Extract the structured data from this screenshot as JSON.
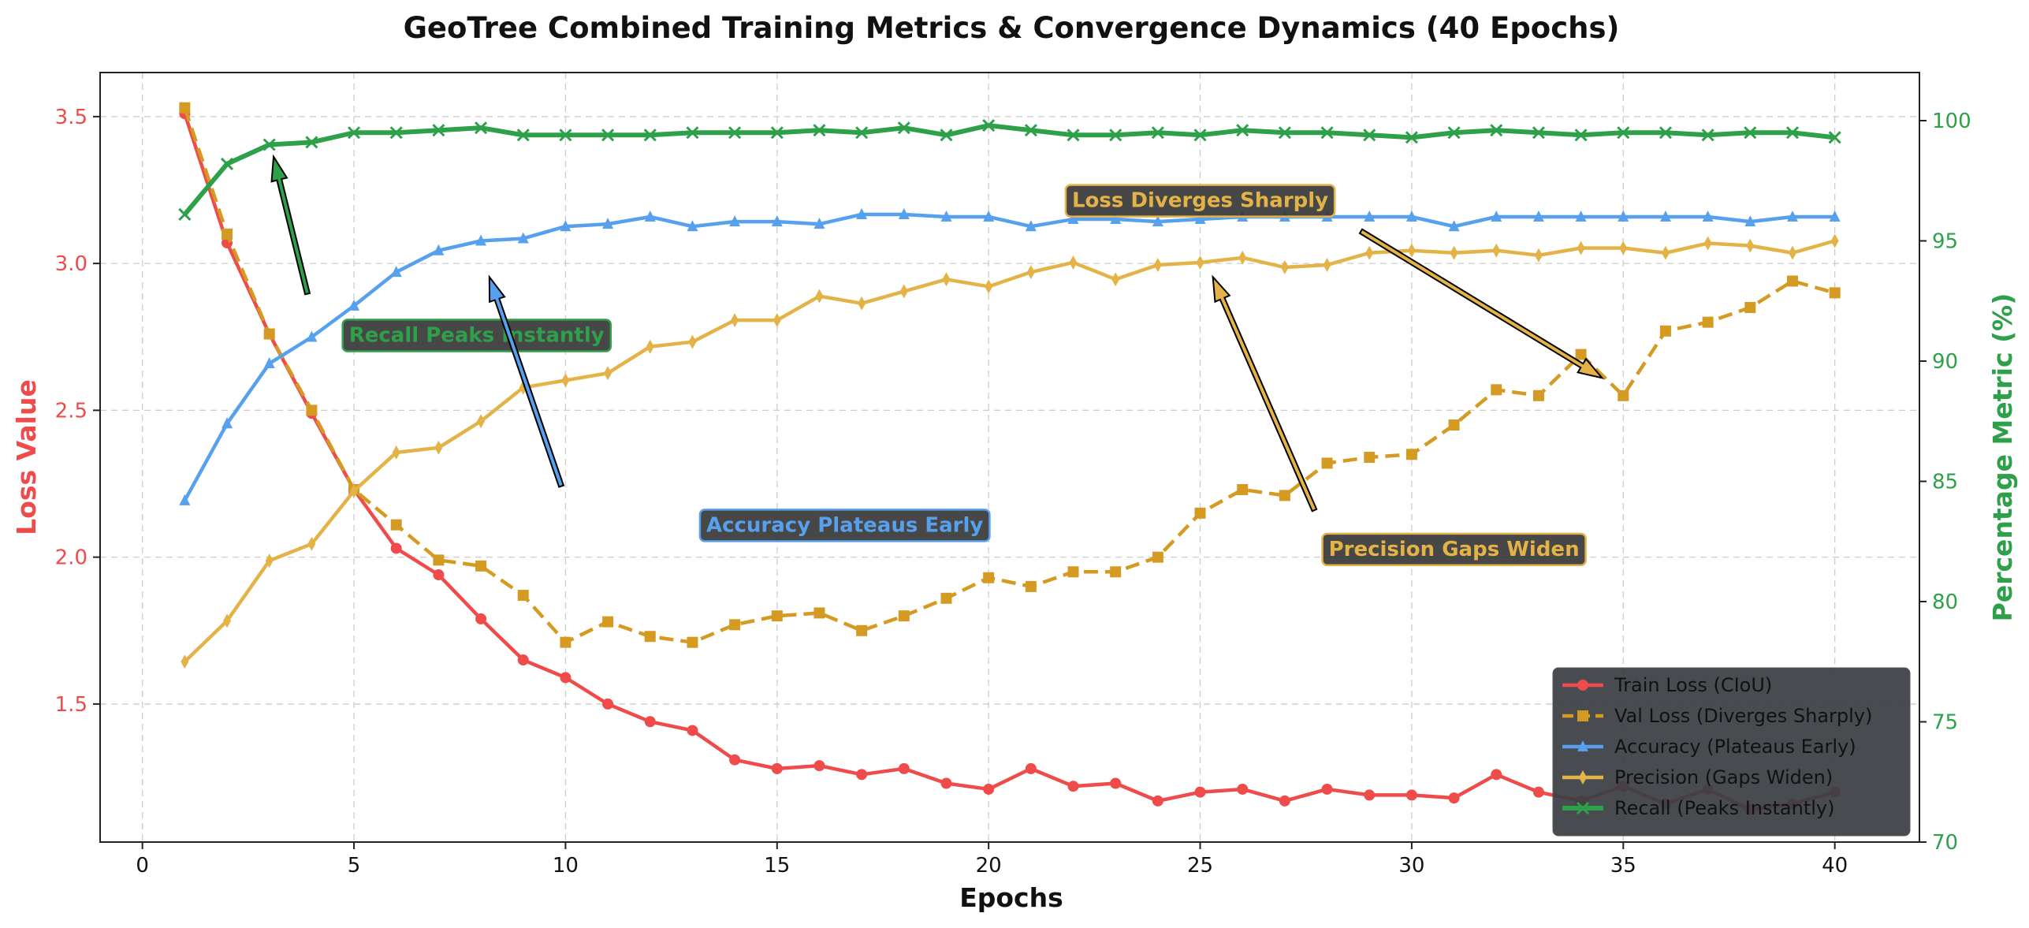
{
  "chart_data": {
    "type": "line",
    "title": "GeoTree Combined Training Metrics & Convergence Dynamics (40 Epochs)",
    "xlabel": "Epochs",
    "ylabel_left": "Loss Value",
    "ylabel_right": "Percentage Metric (%)",
    "xlim": [
      -1,
      42
    ],
    "ylim_left": [
      1.03,
      3.65
    ],
    "ylim_right": [
      70,
      102
    ],
    "x_ticks": [
      0,
      5,
      10,
      15,
      20,
      25,
      30,
      35,
      40
    ],
    "y_ticks_left": [
      1.5,
      2.0,
      2.5,
      3.0,
      3.5
    ],
    "y_ticks_right": [
      70,
      75,
      80,
      85,
      90,
      95,
      100
    ],
    "grid": true,
    "legend_position": "bottom-right",
    "x": [
      1,
      2,
      3,
      4,
      5,
      6,
      7,
      8,
      9,
      10,
      11,
      12,
      13,
      14,
      15,
      16,
      17,
      18,
      19,
      20,
      21,
      22,
      23,
      24,
      25,
      26,
      27,
      28,
      29,
      30,
      31,
      32,
      33,
      34,
      35,
      36,
      37,
      38,
      39,
      40
    ],
    "series": [
      {
        "name": "Train Loss (CIoU)",
        "axis": "left",
        "color": "#ef4b4b",
        "marker": "circle",
        "dash": "solid",
        "values": [
          3.51,
          3.07,
          2.76,
          2.49,
          2.23,
          2.03,
          1.94,
          1.79,
          1.65,
          1.59,
          1.5,
          1.44,
          1.41,
          1.31,
          1.28,
          1.29,
          1.26,
          1.28,
          1.23,
          1.21,
          1.28,
          1.22,
          1.23,
          1.17,
          1.2,
          1.21,
          1.17,
          1.21,
          1.19,
          1.19,
          1.18,
          1.26,
          1.2,
          1.17,
          1.22,
          1.16,
          1.21,
          1.14,
          1.16,
          1.2
        ]
      },
      {
        "name": "Val Loss (Diverges Sharply)",
        "axis": "left",
        "color": "#d49a22",
        "marker": "square",
        "dash": "dashed",
        "values": [
          3.53,
          3.1,
          2.76,
          2.5,
          2.23,
          2.11,
          1.99,
          1.97,
          1.87,
          1.71,
          1.78,
          1.73,
          1.71,
          1.77,
          1.8,
          1.81,
          1.75,
          1.8,
          1.86,
          1.93,
          1.9,
          1.95,
          1.95,
          2.0,
          2.15,
          2.23,
          2.21,
          2.32,
          2.34,
          2.35,
          2.45,
          2.57,
          2.55,
          2.69,
          2.55,
          2.77,
          2.8,
          2.85,
          2.94,
          2.9
        ]
      },
      {
        "name": "Accuracy (Plateaus Early)",
        "axis": "right",
        "color": "#56a0ee",
        "marker": "triangle",
        "dash": "solid",
        "values": [
          84.2,
          87.4,
          89.9,
          91.0,
          92.3,
          93.7,
          94.6,
          95.0,
          95.1,
          95.6,
          95.7,
          96.0,
          95.6,
          95.8,
          95.8,
          95.7,
          96.1,
          96.1,
          96.0,
          96.0,
          95.6,
          95.9,
          95.9,
          95.8,
          95.9,
          96.0,
          96.0,
          96.0,
          96.0,
          96.0,
          95.6,
          96.0,
          96.0,
          96.0,
          96.0,
          96.0,
          96.0,
          95.8,
          96.0,
          96.0
        ]
      },
      {
        "name": "Precision (Gaps Widen)",
        "axis": "right",
        "color": "#e3b347",
        "marker": "diamond",
        "dash": "solid",
        "values": [
          77.5,
          79.2,
          81.7,
          82.4,
          84.6,
          86.2,
          86.4,
          87.5,
          88.9,
          89.2,
          89.5,
          90.6,
          90.8,
          91.7,
          91.7,
          92.7,
          92.4,
          92.9,
          93.4,
          93.1,
          93.7,
          94.1,
          93.4,
          94.0,
          94.1,
          94.3,
          93.9,
          94.0,
          94.5,
          94.6,
          94.5,
          94.6,
          94.4,
          94.7,
          94.7,
          94.5,
          94.9,
          94.8,
          94.5,
          95.0
        ]
      },
      {
        "name": "Recall (Peaks Instantly)",
        "axis": "right",
        "color": "#2ea04a",
        "marker": "x",
        "dash": "solid",
        "values": [
          96.1,
          98.2,
          99.0,
          99.1,
          99.5,
          99.5,
          99.6,
          99.7,
          99.4,
          99.4,
          99.4,
          99.4,
          99.5,
          99.5,
          99.5,
          99.6,
          99.5,
          99.7,
          99.4,
          99.8,
          99.6,
          99.4,
          99.4,
          99.5,
          99.4,
          99.6,
          99.5,
          99.5,
          99.4,
          99.3,
          99.5,
          99.6,
          99.5,
          99.4,
          99.5,
          99.5,
          99.4,
          99.5,
          99.5,
          99.3
        ]
      }
    ],
    "annotations": [
      {
        "text": "Recall Peaks Instantly",
        "color": "#2ea04a",
        "text_x": 7.9,
        "text_y_right": 91.1,
        "arrow_from_x": 3.9,
        "arrow_from_y_right": 92.8,
        "arrow_to_x": 3.1,
        "arrow_to_y_right": 98.5
      },
      {
        "text": "Accuracy Plateaus Early",
        "color": "#56a0ee",
        "text_x": 16.6,
        "text_y_right": 83.2,
        "arrow_from_x": 9.9,
        "arrow_from_y_right": 84.8,
        "arrow_to_x": 8.2,
        "arrow_to_y_right": 93.5
      },
      {
        "text": "Loss Diverges Sharply",
        "color": "#e3b347",
        "text_x": 25.0,
        "text_y_right": 96.7,
        "arrow_from_x": 28.8,
        "arrow_from_y_right": 95.4,
        "arrow_to_x": 34.5,
        "arrow_to_y_right": 89.3
      },
      {
        "text": "Precision Gaps Widen",
        "color": "#e3b347",
        "text_x": 31.0,
        "text_y_right": 82.2,
        "arrow_from_x": 27.7,
        "arrow_from_y_right": 83.8,
        "arrow_to_x": 25.3,
        "arrow_to_y_right": 93.5
      }
    ]
  }
}
